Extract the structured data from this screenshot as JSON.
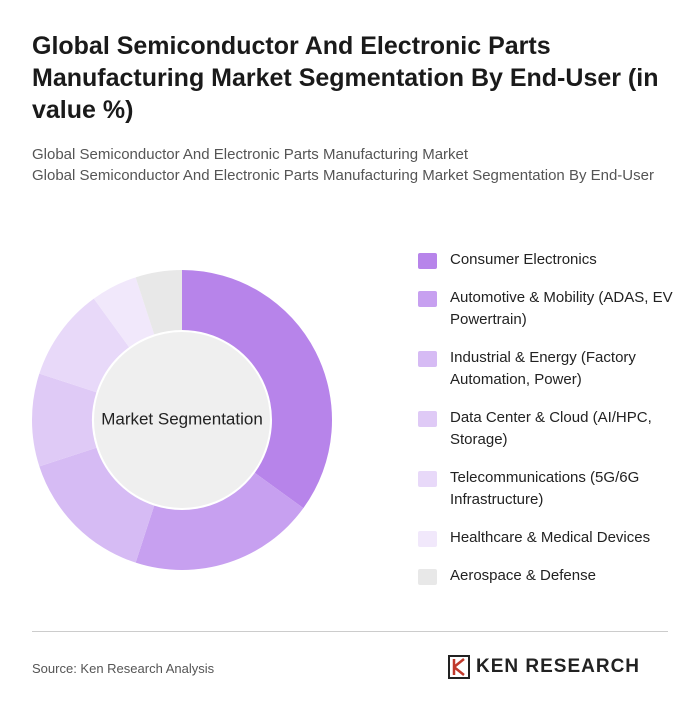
{
  "chart_data": {
    "type": "donut",
    "title": "Global Semiconductor And Electronic Parts Manufacturing Market Segmentation By End-User (in value %)",
    "subtitle": [
      "Global Semiconductor And Electronic Parts Manufacturing Market",
      "Global Semiconductor And Electronic Parts Manufacturing Market Segmentation By End-User"
    ],
    "center_label": "Market Segmentation",
    "categories": [
      "Consumer Electronics",
      "Automotive & Mobility (ADAS, EV Powertrain)",
      "Industrial & Energy (Factory Automation, Power)",
      "Data Center & Cloud (AI/HPC, Storage)",
      "Telecommunications (5G/6G Infrastructure)",
      "Healthcare & Medical Devices",
      "Aerospace & Defense"
    ],
    "values": [
      35,
      20,
      15,
      10,
      10,
      5,
      5
    ],
    "colors": [
      "#b784ea",
      "#c7a0f0",
      "#d6bbf4",
      "#dfcaf6",
      "#e8d9f9",
      "#f1e8fb",
      "#e8e8e8"
    ]
  },
  "footer": {
    "source": "Source: Ken Research Analysis",
    "brand": "KEN RESEARCH"
  }
}
